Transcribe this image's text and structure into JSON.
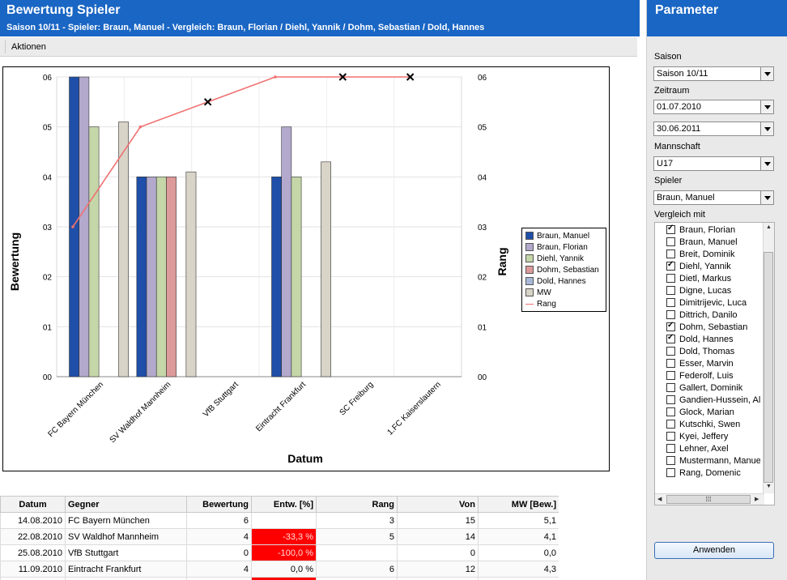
{
  "header": {
    "title": "Bewertung Spieler",
    "subtitle": "Saison 10/11 - Spieler: Braun, Manuel - Vergleich: Braun, Florian / Diehl, Yannik / Dohm, Sebastian / Dold, Hannes"
  },
  "toolbar": {
    "actions_label": "Aktionen"
  },
  "chart_data": {
    "type": "bar",
    "xlabel": "Datum",
    "ylabel": "Bewertung",
    "y2label": "Rang",
    "ylim": [
      0,
      6
    ],
    "y2lim": [
      0,
      6
    ],
    "yticks": [
      "00",
      "01",
      "02",
      "03",
      "04",
      "05",
      "06"
    ],
    "y2ticks": [
      "00",
      "01",
      "02",
      "03",
      "04",
      "05",
      "06"
    ],
    "grid": true,
    "legend_position": "right",
    "categories": [
      "FC Bayern München",
      "SV Waldhof Mannheim",
      "VfB Stuttgart",
      "Eintracht Frankfurt",
      "SC Freiburg",
      "1.FC Kaiserslautern"
    ],
    "series": [
      {
        "name": "Braun, Manuel",
        "color": "#1f4fa8",
        "values": [
          6,
          4,
          0,
          4,
          0,
          0
        ]
      },
      {
        "name": "Braun, Florian",
        "color": "#b3a9cc",
        "values": [
          6,
          4,
          0,
          5,
          0,
          0
        ]
      },
      {
        "name": "Diehl, Yannik",
        "color": "#c5d6a8",
        "values": [
          5,
          4,
          0,
          4,
          0,
          0
        ]
      },
      {
        "name": "Dohm, Sebastian",
        "color": "#dd9a9a",
        "values": [
          0,
          4,
          0,
          0,
          0,
          0
        ]
      },
      {
        "name": "Dold, Hannes",
        "color": "#a8b9d8",
        "values": [
          0,
          0,
          0,
          0,
          0,
          0
        ]
      },
      {
        "name": "MW",
        "color": "#d8d4c8",
        "values": [
          5.1,
          4.1,
          0,
          4.3,
          0,
          0
        ]
      }
    ],
    "line": {
      "name": "Rang",
      "color": "#f07070",
      "values": [
        3,
        5,
        5.5,
        6,
        6,
        6
      ],
      "markers": [
        false,
        false,
        true,
        false,
        true,
        true
      ]
    }
  },
  "table": {
    "columns": [
      "Datum",
      "Gegner",
      "Bewertung",
      "Entw. [%]",
      "Rang",
      "Von",
      "MW [Bew.]"
    ],
    "rows": [
      [
        "14.08.2010",
        "FC Bayern München",
        "6",
        "",
        "3",
        "15",
        "5,1"
      ],
      [
        "22.08.2010",
        "SV Waldhof Mannheim",
        "4",
        "-33,3 %",
        "5",
        "14",
        "4,1"
      ],
      [
        "25.08.2010",
        "VfB Stuttgart",
        "0",
        "-100,0 %",
        "",
        "0",
        "0,0"
      ],
      [
        "11.09.2010",
        "Eintracht Frankfurt",
        "4",
        "0,0 %",
        "6",
        "12",
        "4,3"
      ]
    ]
  },
  "params": {
    "title": "Parameter",
    "season_label": "Saison",
    "season_value": "Saison 10/11",
    "period_label": "Zeitraum",
    "date_from": "01.07.2010",
    "date_to": "30.06.2011",
    "team_label": "Mannschaft",
    "team_value": "U17",
    "player_label": "Spieler",
    "player_value": "Braun, Manuel",
    "compare_label": "Vergleich mit",
    "compare_list": [
      {
        "name": "Braun, Florian",
        "checked": true
      },
      {
        "name": "Braun, Manuel",
        "checked": false
      },
      {
        "name": "Breit, Dominik",
        "checked": false
      },
      {
        "name": "Diehl, Yannik",
        "checked": true
      },
      {
        "name": "Dietl, Markus",
        "checked": false
      },
      {
        "name": "Digne, Lucas",
        "checked": false
      },
      {
        "name": "Dimitrijevic, Luca",
        "checked": false
      },
      {
        "name": "Dittrich, Danilo",
        "checked": false
      },
      {
        "name": "Dohm, Sebastian",
        "checked": true
      },
      {
        "name": "Dold, Hannes",
        "checked": true
      },
      {
        "name": "Dold, Thomas",
        "checked": false
      },
      {
        "name": "Esser, Marvin",
        "checked": false
      },
      {
        "name": "Federolf, Luis",
        "checked": false
      },
      {
        "name": "Gallert, Dominik",
        "checked": false
      },
      {
        "name": "Gandien-Hussein, Al",
        "checked": false
      },
      {
        "name": "Glock, Marian",
        "checked": false
      },
      {
        "name": "Kutschki, Swen",
        "checked": false
      },
      {
        "name": "Kyei, Jeffery",
        "checked": false
      },
      {
        "name": "Lehner, Axel",
        "checked": false
      },
      {
        "name": "Mustermann, Manuel",
        "checked": false
      },
      {
        "name": "Rang, Domenic",
        "checked": false
      }
    ],
    "apply_label": "Anwenden"
  },
  "colors": {
    "header_blue": "#1a66c4",
    "negative_red": "#ff0000"
  }
}
